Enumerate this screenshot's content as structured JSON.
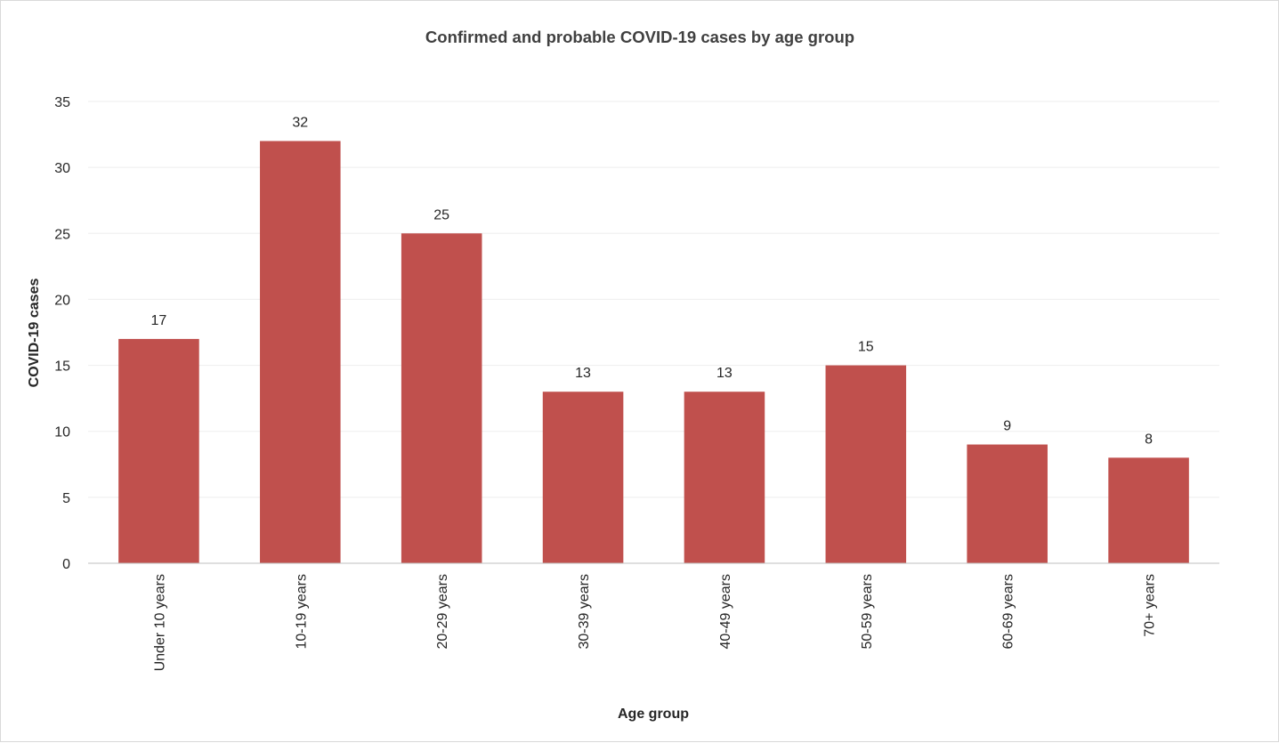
{
  "chart_data": {
    "type": "bar",
    "title": "Confirmed  and probable COVID-19 cases by age group",
    "xlabel": "Age group",
    "ylabel": "COVID-19 cases",
    "categories": [
      "Under 10 years",
      "10-19 years",
      "20-29 years",
      "30-39 years",
      "40-49 years",
      "50-59 years",
      "60-69 years",
      "70+ years"
    ],
    "values": [
      17,
      32,
      25,
      13,
      13,
      15,
      9,
      8
    ],
    "ylim": [
      0,
      35
    ],
    "yticks": [
      0,
      5,
      10,
      15,
      20,
      25,
      30,
      35
    ],
    "grid": true,
    "legend": "none",
    "bar_color": "#C0504D"
  }
}
